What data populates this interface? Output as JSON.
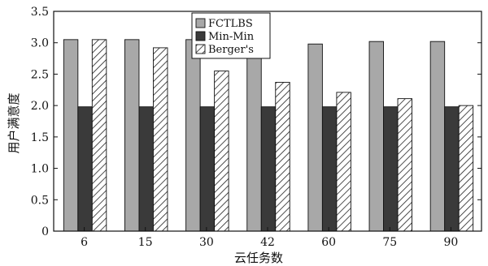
{
  "chart_data": {
    "type": "bar",
    "title": "",
    "xlabel": "云任务数",
    "ylabel": "用户满意度",
    "categories": [
      "6",
      "15",
      "30",
      "42",
      "60",
      "75",
      "90"
    ],
    "ylim": [
      0,
      3.5
    ],
    "yticks": [
      "0",
      "0.5",
      "1.0",
      "1.5",
      "2.0",
      "2.5",
      "3.0",
      "3.5"
    ],
    "grid": false,
    "legend_position": "top-center",
    "series": [
      {
        "name": "FCTLBS",
        "values": [
          3.05,
          3.05,
          3.05,
          3.02,
          2.98,
          3.02,
          3.02
        ],
        "color": "#a8a8a8",
        "pattern": "solid"
      },
      {
        "name": "Min-Min",
        "values": [
          1.98,
          1.98,
          1.98,
          1.98,
          1.98,
          1.98,
          1.98
        ],
        "color": "#3a3a3a",
        "pattern": "solid"
      },
      {
        "name": "Berger's",
        "values": [
          3.05,
          2.92,
          2.55,
          2.37,
          2.21,
          2.11,
          2.0
        ],
        "color": "#ffffff",
        "pattern": "hatch"
      }
    ]
  }
}
